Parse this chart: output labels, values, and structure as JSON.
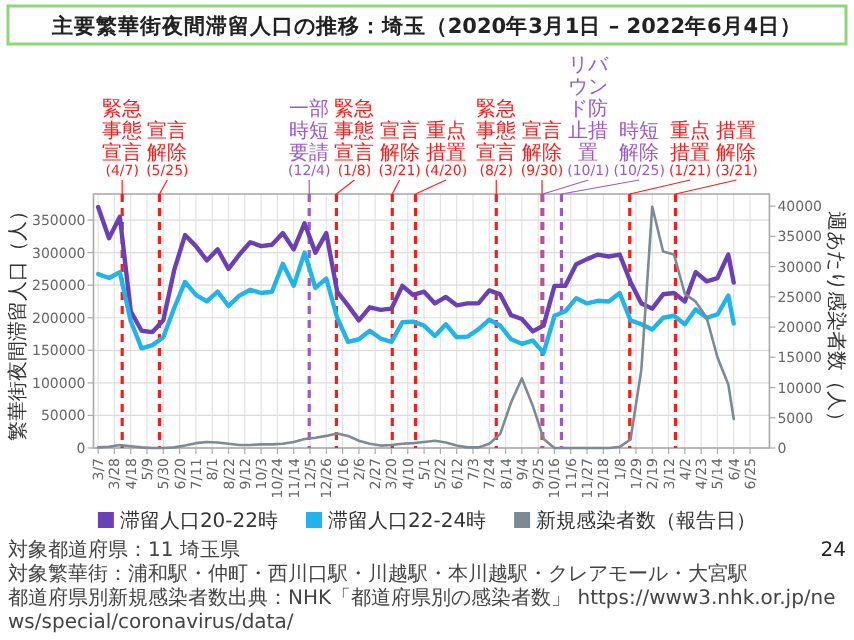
{
  "chart_data": {
    "type": "line",
    "title": "主要繁華街夜間滞留人口の推移：埼玉（2020年3月1日 – 2022年6月4日）",
    "ylabel": "繁華街夜間滞留人口（人）",
    "y2label": "週あたり感染者数（人）",
    "x": [
      "2020-03-07",
      "2020-03-21",
      "2020-04-04",
      "2020-04-18",
      "2020-05-02",
      "2020-05-16",
      "2020-05-30",
      "2020-06-13",
      "2020-06-27",
      "2020-07-11",
      "2020-07-25",
      "2020-08-08",
      "2020-08-22",
      "2020-09-05",
      "2020-09-19",
      "2020-10-03",
      "2020-10-17",
      "2020-10-31",
      "2020-11-14",
      "2020-11-28",
      "2020-12-12",
      "2020-12-26",
      "2021-01-09",
      "2021-01-23",
      "2021-02-06",
      "2021-02-20",
      "2021-03-06",
      "2021-03-20",
      "2021-04-03",
      "2021-04-17",
      "2021-05-01",
      "2021-05-15",
      "2021-05-29",
      "2021-06-12",
      "2021-06-26",
      "2021-07-10",
      "2021-07-24",
      "2021-08-07",
      "2021-08-21",
      "2021-09-04",
      "2021-09-18",
      "2021-10-02",
      "2021-10-16",
      "2021-10-30",
      "2021-11-13",
      "2021-11-27",
      "2021-12-11",
      "2021-12-25",
      "2022-01-08",
      "2022-01-22",
      "2022-02-05",
      "2022-02-19",
      "2022-03-05",
      "2022-03-19",
      "2022-04-02",
      "2022-04-16",
      "2022-04-30",
      "2022-05-14",
      "2022-05-28",
      "2022-06-04"
    ],
    "series": [
      {
        "name": "滞留人口20-22時",
        "color": "#6b3fb5",
        "values": [
          370000,
          322000,
          355000,
          210000,
          180000,
          178000,
          196000,
          273000,
          327000,
          310000,
          288000,
          305000,
          275000,
          297000,
          316000,
          310000,
          312000,
          330000,
          305000,
          345000,
          300000,
          330000,
          240000,
          219000,
          196000,
          216000,
          212000,
          214000,
          249000,
          235000,
          240000,
          222000,
          232000,
          219000,
          222000,
          222000,
          242000,
          236000,
          204000,
          198000,
          179000,
          188000,
          249000,
          249000,
          282000,
          290000,
          297000,
          294000,
          297000,
          255000,
          222000,
          214000,
          236000,
          238000,
          225000,
          270000,
          256000,
          261000,
          297000,
          254000
        ]
      },
      {
        "name": "滞留人口22-24時",
        "color": "#1fb4ea",
        "values": [
          267000,
          261000,
          270000,
          195000,
          153000,
          158000,
          170000,
          215000,
          255000,
          235000,
          225000,
          240000,
          218000,
          234000,
          243000,
          238000,
          240000,
          283000,
          249000,
          300000,
          246000,
          260000,
          200000,
          163000,
          167000,
          180000,
          168000,
          163000,
          193000,
          194000,
          188000,
          172000,
          190000,
          170000,
          171000,
          182000,
          197000,
          188000,
          167000,
          160000,
          165000,
          146000,
          203000,
          210000,
          230000,
          222000,
          226000,
          225000,
          238000,
          196000,
          190000,
          182000,
          200000,
          203000,
          190000,
          213000,
          200000,
          205000,
          234000,
          191000
        ]
      },
      {
        "name": "新規感染者数（報告日）",
        "color": "#7c8a95",
        "axis": "y2",
        "values": [
          100,
          200,
          500,
          300,
          100,
          0,
          0,
          100,
          400,
          800,
          1000,
          900,
          700,
          500,
          500,
          600,
          600,
          700,
          1000,
          1500,
          1700,
          2000,
          2400,
          2000,
          1200,
          700,
          400,
          500,
          700,
          800,
          1000,
          1200,
          900,
          400,
          100,
          100,
          700,
          2300,
          7500,
          11500,
          7000,
          1500,
          0,
          0,
          0,
          0,
          0,
          0,
          200,
          1400,
          13000,
          39900,
          32500,
          32000,
          25500,
          24200,
          21600,
          15000,
          10500,
          4800
        ]
      }
    ],
    "xlim": [
      "2020-03-01",
      "2022-07-20"
    ],
    "xticks": [
      {
        "value": "2020-03-07",
        "label": "3/7"
      },
      {
        "value": "2020-03-28",
        "label": "3/28"
      },
      {
        "value": "2020-04-18",
        "label": "4/18"
      },
      {
        "value": "2020-05-09",
        "label": "5/9"
      },
      {
        "value": "2020-05-30",
        "label": "5/30"
      },
      {
        "value": "2020-06-20",
        "label": "6/20"
      },
      {
        "value": "2020-07-11",
        "label": "7/11"
      },
      {
        "value": "2020-08-01",
        "label": "8/1"
      },
      {
        "value": "2020-08-22",
        "label": "8/22"
      },
      {
        "value": "2020-09-12",
        "label": "9/12"
      },
      {
        "value": "2020-10-03",
        "label": "10/3"
      },
      {
        "value": "2020-10-24",
        "label": "10/24"
      },
      {
        "value": "2020-11-14",
        "label": "11/14"
      },
      {
        "value": "2020-12-05",
        "label": "12/5"
      },
      {
        "value": "2020-12-26",
        "label": "12/26"
      },
      {
        "value": "2021-01-16",
        "label": "1/16"
      },
      {
        "value": "2021-02-06",
        "label": "2/6"
      },
      {
        "value": "2021-02-27",
        "label": "2/27"
      },
      {
        "value": "2021-03-20",
        "label": "3/20"
      },
      {
        "value": "2021-04-10",
        "label": "4/10"
      },
      {
        "value": "2021-05-01",
        "label": "5/1"
      },
      {
        "value": "2021-05-22",
        "label": "5/22"
      },
      {
        "value": "2021-06-12",
        "label": "6/12"
      },
      {
        "value": "2021-07-03",
        "label": "7/3"
      },
      {
        "value": "2021-07-24",
        "label": "7/24"
      },
      {
        "value": "2021-08-14",
        "label": "8/14"
      },
      {
        "value": "2021-09-04",
        "label": "9/4"
      },
      {
        "value": "2021-09-25",
        "label": "9/25"
      },
      {
        "value": "2021-10-16",
        "label": "10/16"
      },
      {
        "value": "2021-11-06",
        "label": "11/6"
      },
      {
        "value": "2021-11-27",
        "label": "11/27"
      },
      {
        "value": "2021-12-18",
        "label": "12/18"
      },
      {
        "value": "2022-01-08",
        "label": "1/8"
      },
      {
        "value": "2022-01-29",
        "label": "1/29"
      },
      {
        "value": "2022-02-19",
        "label": "2/19"
      },
      {
        "value": "2022-03-12",
        "label": "3/12"
      },
      {
        "value": "2022-04-02",
        "label": "4/2"
      },
      {
        "value": "2022-04-23",
        "label": "4/23"
      },
      {
        "value": "2022-05-14",
        "label": "5/14"
      },
      {
        "value": "2022-06-04",
        "label": "6/4"
      },
      {
        "value": "2022-06-25",
        "label": "6/25"
      }
    ],
    "ylim": [
      0,
      390000
    ],
    "yticks": [
      0,
      50000,
      100000,
      150000,
      200000,
      250000,
      300000,
      350000
    ],
    "y2lim": [
      0,
      42000
    ],
    "y2ticks": [
      0,
      5000,
      10000,
      15000,
      20000,
      25000,
      30000,
      35000,
      40000
    ],
    "ref_lines": [
      {
        "axis": "x",
        "value": "2020-04-07",
        "label": "緊急事態宣言(4/7)",
        "color": "#ff1a1a",
        "line_style": "dashed"
      },
      {
        "axis": "x",
        "value": "2020-05-25",
        "label": "宣言解除(5/25)",
        "color": "#ff1a1a",
        "line_style": "dashed"
      },
      {
        "axis": "x",
        "value": "2020-12-04",
        "label": "一部時短要請(12/4)",
        "color": "#9b59d0",
        "line_style": "dashed"
      },
      {
        "axis": "x",
        "value": "2021-01-08",
        "label": "緊急事態宣言(1/8)",
        "color": "#ff1a1a",
        "line_style": "dashed"
      },
      {
        "axis": "x",
        "value": "2021-03-21",
        "label": "宣言解除(3/21)",
        "color": "#ff1a1a",
        "line_style": "dashed"
      },
      {
        "axis": "x",
        "value": "2021-04-20",
        "label": "重点措置(4/20)",
        "color": "#ff1a1a",
        "line_style": "dashed"
      },
      {
        "axis": "x",
        "value": "2021-08-02",
        "label": "緊急事態宣言(8/2)",
        "color": "#ff1a1a",
        "line_style": "dashed"
      },
      {
        "axis": "x",
        "value": "2021-09-30",
        "label": "宣言解除(9/30)",
        "color": "#ff1a1a",
        "line_style": "dashed"
      },
      {
        "axis": "x",
        "value": "2021-10-01",
        "label": "リバウンド防止措置(10/1)",
        "color": "#9b59d0",
        "line_style": "dashed"
      },
      {
        "axis": "x",
        "value": "2021-10-25",
        "label": "時短解除(10/25)",
        "color": "#9b59d0",
        "line_style": "dashed"
      },
      {
        "axis": "x",
        "value": "2022-01-21",
        "label": "重点措置(1/21)",
        "color": "#ff1a1a",
        "line_style": "dashed"
      },
      {
        "axis": "x",
        "value": "2022-03-21",
        "label": "措置解除(3/21)",
        "color": "#ff1a1a",
        "line_style": "dashed"
      }
    ],
    "grid": true,
    "legend": "bottom",
    "annotations": [
      "対象都道府県：11 埼玉県",
      "対象繁華街：浦和駅・仲町・西川口駅・川越駅・本川越駅・クレアモール・大宮駅",
      "都道府県別新規感染者数出典：NHK「都道府県別の感染者数」 https://www3.nhk.or.jp/news/special/coronavirus/data/",
      "24"
    ]
  }
}
